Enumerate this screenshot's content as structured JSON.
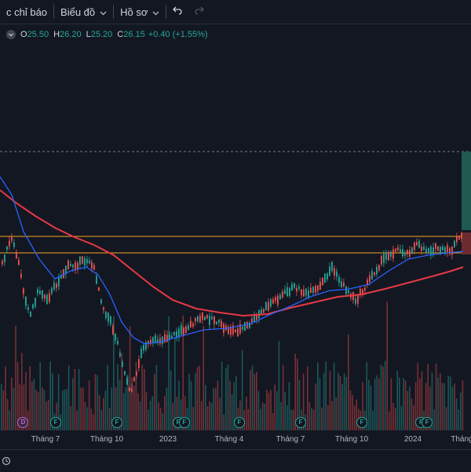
{
  "toolbar": {
    "indicators_label": "c chỉ báo",
    "chart_label": "Biểu đồ",
    "profile_label": "Hồ sơ"
  },
  "legend": {
    "open_label": "O",
    "open": "25.50",
    "high_label": "H",
    "high": "26.20",
    "low_label": "L",
    "low": "25.20",
    "close_label": "C",
    "close": "26.15",
    "change": "+0.40 (+1.55%)"
  },
  "colors": {
    "bg": "#131722",
    "up": "#26a69a",
    "down": "#ef5350",
    "ma_fast": "#2962ff",
    "ma_slow": "#e53945",
    "level": "#f5a623"
  },
  "xaxis": {
    "labels": [
      {
        "text": "Tháng 7",
        "value": 1.0
      },
      {
        "text": "Tháng 10",
        "value": 4.0
      },
      {
        "text": "2023",
        "value": 7.0
      },
      {
        "text": "Tháng 4",
        "value": 10.0
      },
      {
        "text": "Tháng 7",
        "value": 13.0
      },
      {
        "text": "Tháng 10",
        "value": 16.0
      },
      {
        "text": "2024",
        "value": 19.0
      },
      {
        "text": "Tháng",
        "value": 21.4
      }
    ]
  },
  "events": [
    {
      "type": "D",
      "value": -0.1
    },
    {
      "type": "F",
      "value": 1.5
    },
    {
      "type": "F",
      "value": 4.5
    },
    {
      "type": "F",
      "value": 7.5
    },
    {
      "type": "F",
      "value": 7.8
    },
    {
      "type": "F",
      "value": 10.5
    },
    {
      "type": "F",
      "value": 13.5
    },
    {
      "type": "F",
      "value": 16.5
    },
    {
      "type": "F",
      "value": 19.4
    },
    {
      "type": "F",
      "value": 19.7
    }
  ]
}
